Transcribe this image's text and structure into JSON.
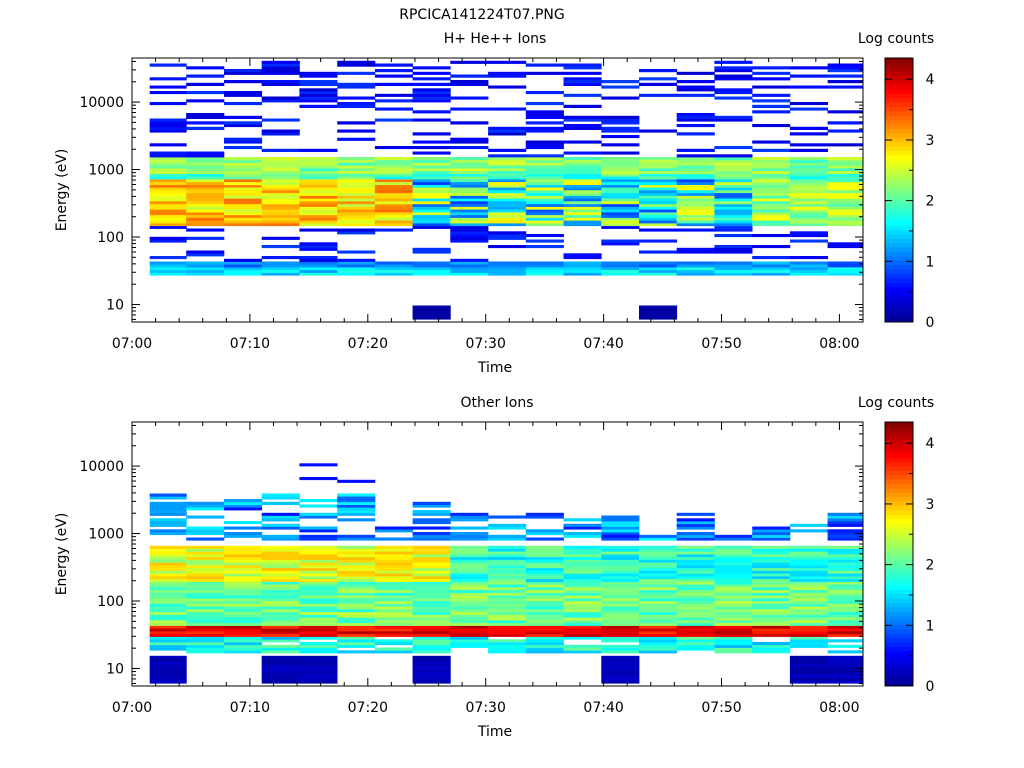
{
  "figure_title": "RPCICA141224T07.PNG",
  "colorbar_title": "Log counts",
  "colormap": [
    "#00008f",
    "#0000ff",
    "#0080ff",
    "#00ffff",
    "#80ff80",
    "#ffff00",
    "#ff8000",
    "#ff0000",
    "#800000"
  ],
  "chart_data": [
    {
      "type": "heatmap",
      "title": "H+ He++ Ions",
      "xlabel": "Time",
      "ylabel": "Energy (eV)",
      "xticks": [
        "07:00",
        "07:10",
        "07:20",
        "07:30",
        "07:40",
        "07:50",
        "08:00"
      ],
      "yticks": [
        "10",
        "100",
        "1000",
        "10000"
      ],
      "x_range_minutes": [
        0,
        62
      ],
      "y_range_eV": [
        5.5,
        45000
      ],
      "y_scale": "log",
      "colorbar_ticks": [
        "0",
        "1",
        "2",
        "3",
        "4"
      ],
      "colorbar_range": [
        0,
        4.35
      ],
      "time_bins_minutes": [
        1.5,
        4.6,
        7.8,
        11,
        14.2,
        17.4,
        20.6,
        23.8,
        27,
        30.2,
        33.4,
        36.6,
        39.8,
        43,
        46.2,
        49.4,
        52.6,
        55.8,
        59,
        62
      ],
      "energy_band_summary": [
        {
          "energy_range_eV": [
            27,
            45
          ],
          "log_counts": 1.3
        },
        {
          "energy_range_eV": [
            150,
            700
          ],
          "log_counts": 2.6
        },
        {
          "energy_range_eV": [
            700,
            1500
          ],
          "log_counts": 1.9
        },
        {
          "energy_range_eV": [
            2000,
            40000
          ],
          "log_counts": 0.5
        },
        {
          "energy_range_eV": [
            6,
            10
          ],
          "log_counts": 0.2,
          "time_bins": [
            7,
            13
          ]
        }
      ]
    },
    {
      "type": "heatmap",
      "title": "Other Ions",
      "xlabel": "Time",
      "ylabel": "Energy (eV)",
      "xticks": [
        "07:00",
        "07:10",
        "07:20",
        "07:30",
        "07:40",
        "07:50",
        "08:00"
      ],
      "yticks": [
        "10",
        "100",
        "1000",
        "10000"
      ],
      "x_range_minutes": [
        0,
        62
      ],
      "y_range_eV": [
        5.5,
        45000
      ],
      "y_scale": "log",
      "colorbar_ticks": [
        "0",
        "1",
        "2",
        "3",
        "4"
      ],
      "colorbar_range": [
        0,
        4.35
      ],
      "time_bins_minutes": [
        1.5,
        4.6,
        7.8,
        11,
        14.2,
        17.4,
        20.6,
        23.8,
        27,
        30.2,
        33.4,
        36.6,
        39.8,
        43,
        46.2,
        49.4,
        52.6,
        55.8,
        59,
        62
      ],
      "energy_band_summary": [
        {
          "energy_range_eV": [
            17,
            30
          ],
          "log_counts": 2.0
        },
        {
          "energy_range_eV": [
            30,
            45
          ],
          "log_counts": 3.9
        },
        {
          "energy_range_eV": [
            45,
            200
          ],
          "log_counts": 2.2
        },
        {
          "energy_range_eV": [
            200,
            650
          ],
          "log_counts": 2.4
        },
        {
          "energy_range_eV": [
            800,
            4000
          ],
          "log_counts": 1.0
        }
      ]
    }
  ]
}
